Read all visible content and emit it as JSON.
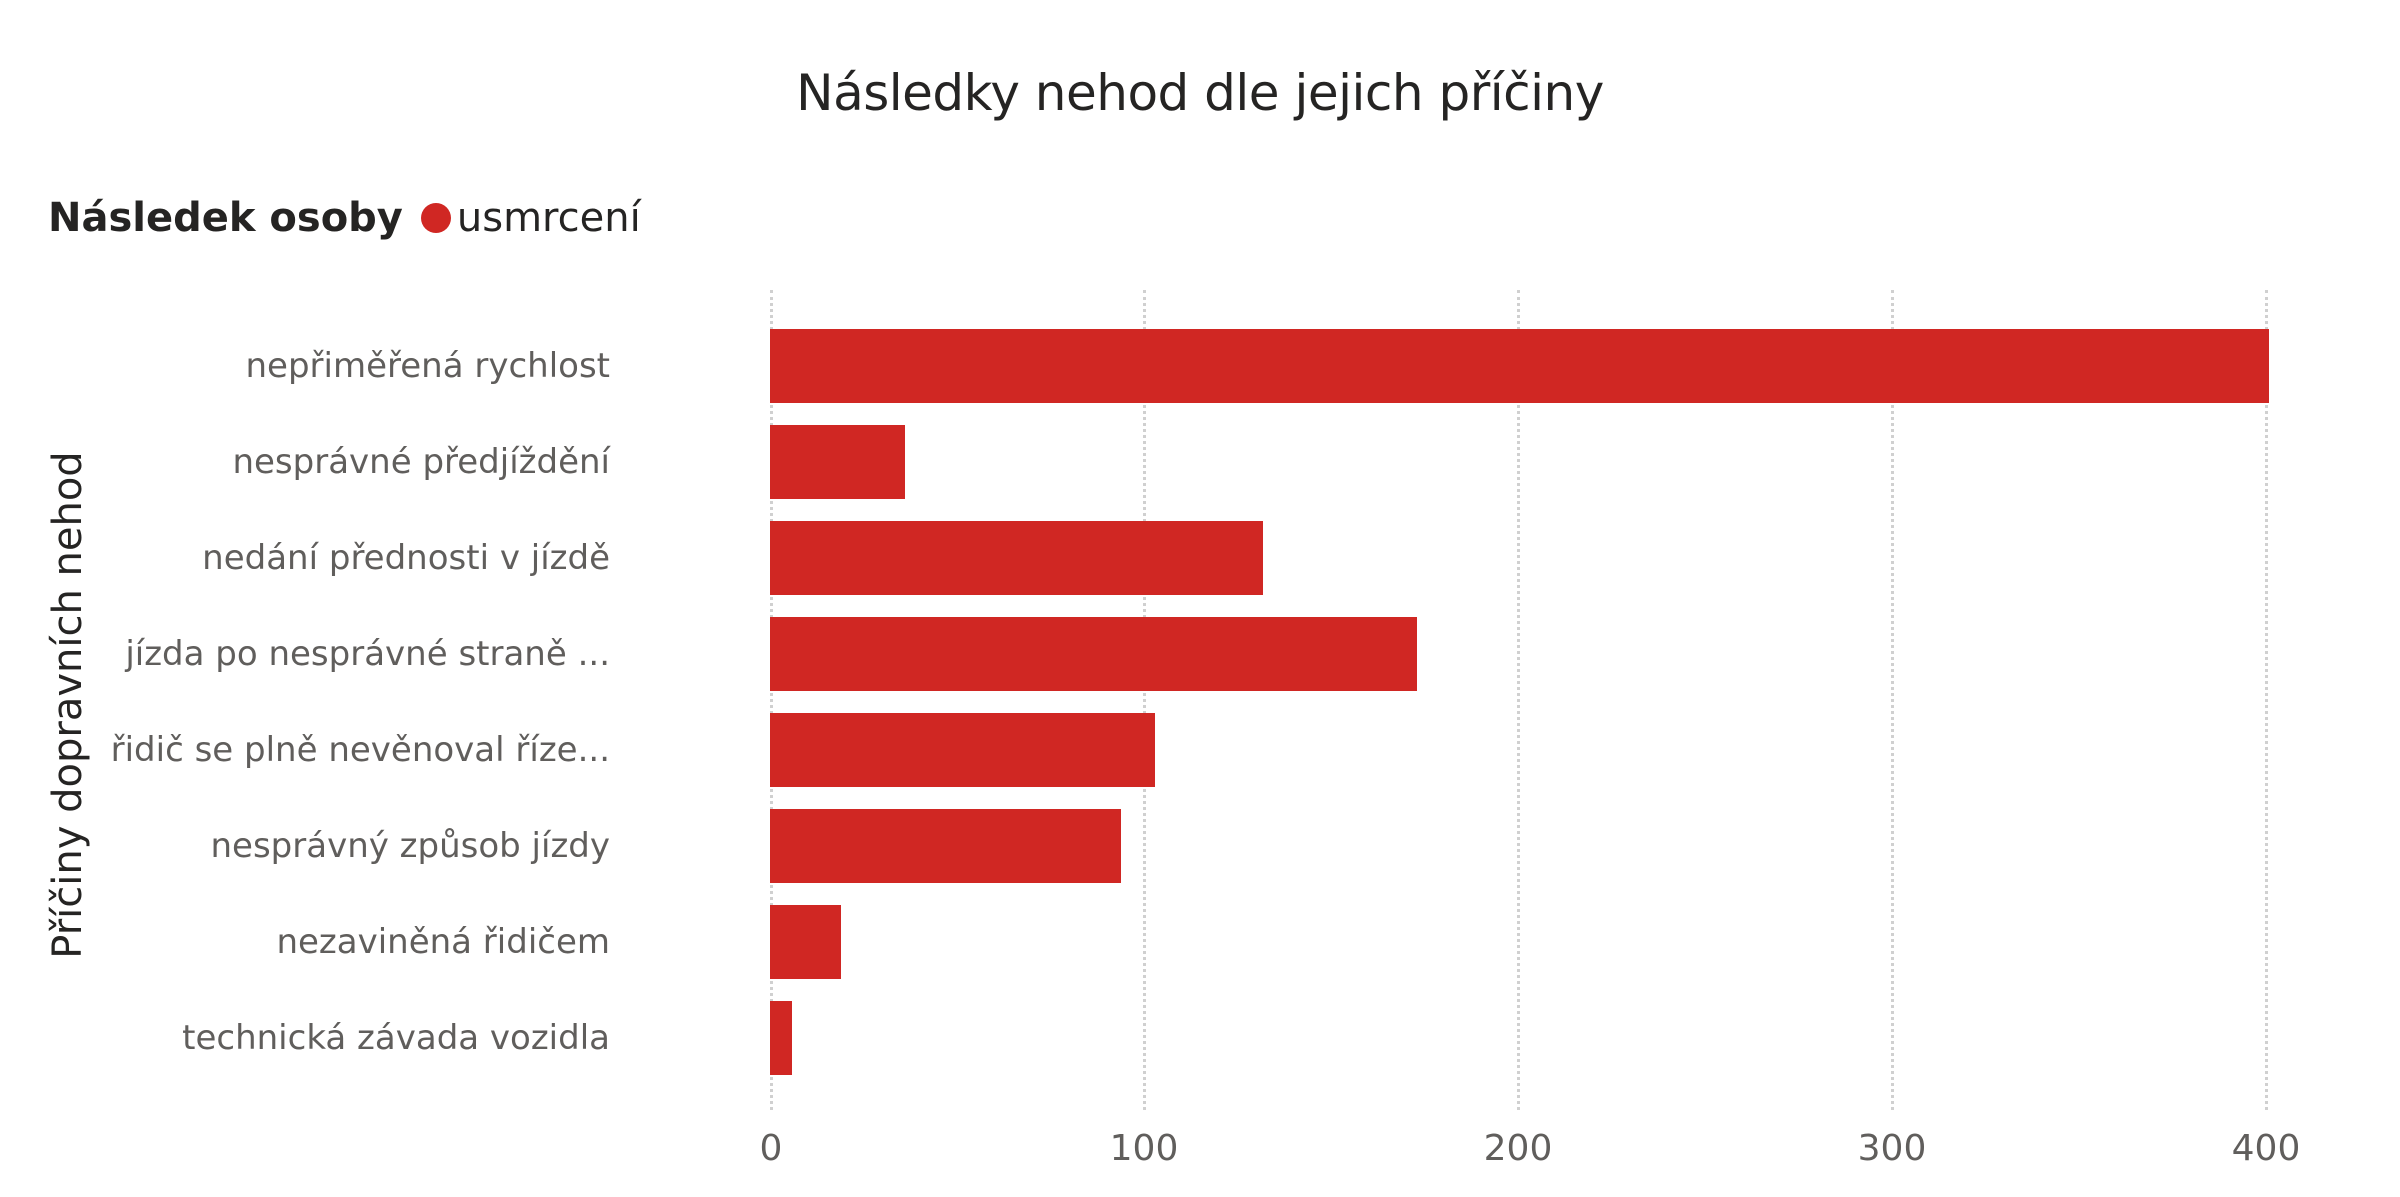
{
  "chart_data": {
    "type": "bar",
    "orientation": "horizontal",
    "title": "Následky nehod dle jejich příčiny",
    "legend": {
      "title": "Následek osoby",
      "position": "top-left",
      "entries": [
        {
          "label": "usmrcení",
          "color": "#d02723"
        }
      ]
    },
    "xlabel": "",
    "ylabel": "Příčiny dopravních nehod",
    "categories": [
      "nepřiměřená rychlost",
      "nesprávné předjíždění",
      "nedání přednosti v jízdě",
      "jízda po nesprávné straně ...",
      "řidič se plně nevěnoval říze...",
      "nesprávný způsob jízdy",
      "nezaviněná řidičem",
      "technická závada vozidla"
    ],
    "series": [
      {
        "name": "usmrcení",
        "color": "#d02723",
        "values": [
          401,
          36,
          132,
          173,
          103,
          94,
          19,
          6
        ]
      }
    ],
    "xlim": [
      0,
      400
    ],
    "x_ticks": [
      "0",
      "100",
      "200",
      "300",
      "400"
    ],
    "grid": {
      "vertical": true,
      "style": "dotted"
    }
  },
  "labels": {
    "title": "Následky nehod dle jejich příčiny",
    "legend_title": "Následek osoby",
    "legend_entry": "usmrcení",
    "y_axis_title": "Příčiny dopravních nehod",
    "categories": [
      "nepřiměřená rychlost",
      "nesprávné předjíždění",
      "nedání přednosti v jízdě",
      "jízda po nesprávné straně ...",
      "řidič se plně nevěnoval říze...",
      "nesprávný způsob jízdy",
      "nezaviněná řidičem",
      "technická závada vozidla"
    ],
    "ticks": [
      "0",
      "100",
      "200",
      "300",
      "400"
    ]
  },
  "colors": {
    "bar": "#d02723",
    "text_dark": "#252423",
    "text_muted": "#605e5c",
    "grid": "#d0d0d0"
  }
}
